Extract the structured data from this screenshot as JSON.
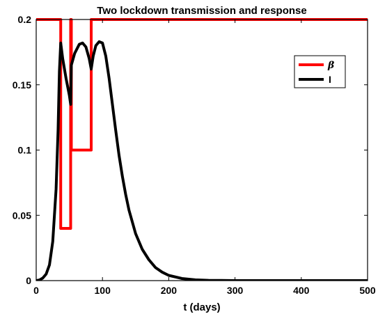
{
  "chart_data": {
    "type": "line",
    "title": "Two lockdown transmission and response",
    "xlabel": "t (days)",
    "ylabel": "",
    "xlim": [
      0,
      500
    ],
    "ylim": [
      0,
      0.2
    ],
    "x_ticks": [
      0,
      100,
      200,
      300,
      400,
      500
    ],
    "y_ticks": [
      0,
      0.05,
      0.1,
      0.15,
      0.2
    ],
    "x_tick_labels": [
      "0",
      "100",
      "200",
      "300",
      "400",
      "500"
    ],
    "y_tick_labels": [
      "0",
      "0.05",
      "0.1",
      "0.15",
      "0.2"
    ],
    "grid": false,
    "legend_position": "top-right",
    "series": [
      {
        "name": "β",
        "color": "#ff0000",
        "points": [
          [
            0,
            0.2
          ],
          [
            37,
            0.2
          ],
          [
            37,
            0.04
          ],
          [
            52,
            0.04
          ],
          [
            52,
            0.2
          ],
          [
            53,
            0.2
          ],
          [
            53,
            0.1
          ],
          [
            83,
            0.1
          ],
          [
            83,
            0.2
          ],
          [
            500,
            0.2
          ]
        ]
      },
      {
        "name": "I",
        "color": "#000000",
        "points": [
          [
            0,
            0.0
          ],
          [
            5,
            0.0005
          ],
          [
            10,
            0.002
          ],
          [
            15,
            0.005
          ],
          [
            20,
            0.012
          ],
          [
            25,
            0.03
          ],
          [
            30,
            0.07
          ],
          [
            33,
            0.115
          ],
          [
            35,
            0.16
          ],
          [
            37,
            0.182
          ],
          [
            40,
            0.17
          ],
          [
            45,
            0.155
          ],
          [
            50,
            0.142
          ],
          [
            52,
            0.135
          ],
          [
            53,
            0.165
          ],
          [
            58,
            0.174
          ],
          [
            65,
            0.181
          ],
          [
            70,
            0.182
          ],
          [
            75,
            0.179
          ],
          [
            80,
            0.17
          ],
          [
            83,
            0.162
          ],
          [
            86,
            0.172
          ],
          [
            90,
            0.18
          ],
          [
            95,
            0.183
          ],
          [
            100,
            0.182
          ],
          [
            105,
            0.172
          ],
          [
            110,
            0.155
          ],
          [
            115,
            0.135
          ],
          [
            120,
            0.115
          ],
          [
            125,
            0.096
          ],
          [
            130,
            0.08
          ],
          [
            135,
            0.066
          ],
          [
            140,
            0.054
          ],
          [
            150,
            0.036
          ],
          [
            160,
            0.024
          ],
          [
            170,
            0.016
          ],
          [
            180,
            0.01
          ],
          [
            190,
            0.0065
          ],
          [
            200,
            0.004
          ],
          [
            220,
            0.0016
          ],
          [
            240,
            0.0006
          ],
          [
            260,
            0.0002
          ],
          [
            280,
            0.0001
          ],
          [
            300,
            0.0
          ],
          [
            400,
            0.0
          ],
          [
            500,
            0.0
          ]
        ]
      }
    ]
  }
}
